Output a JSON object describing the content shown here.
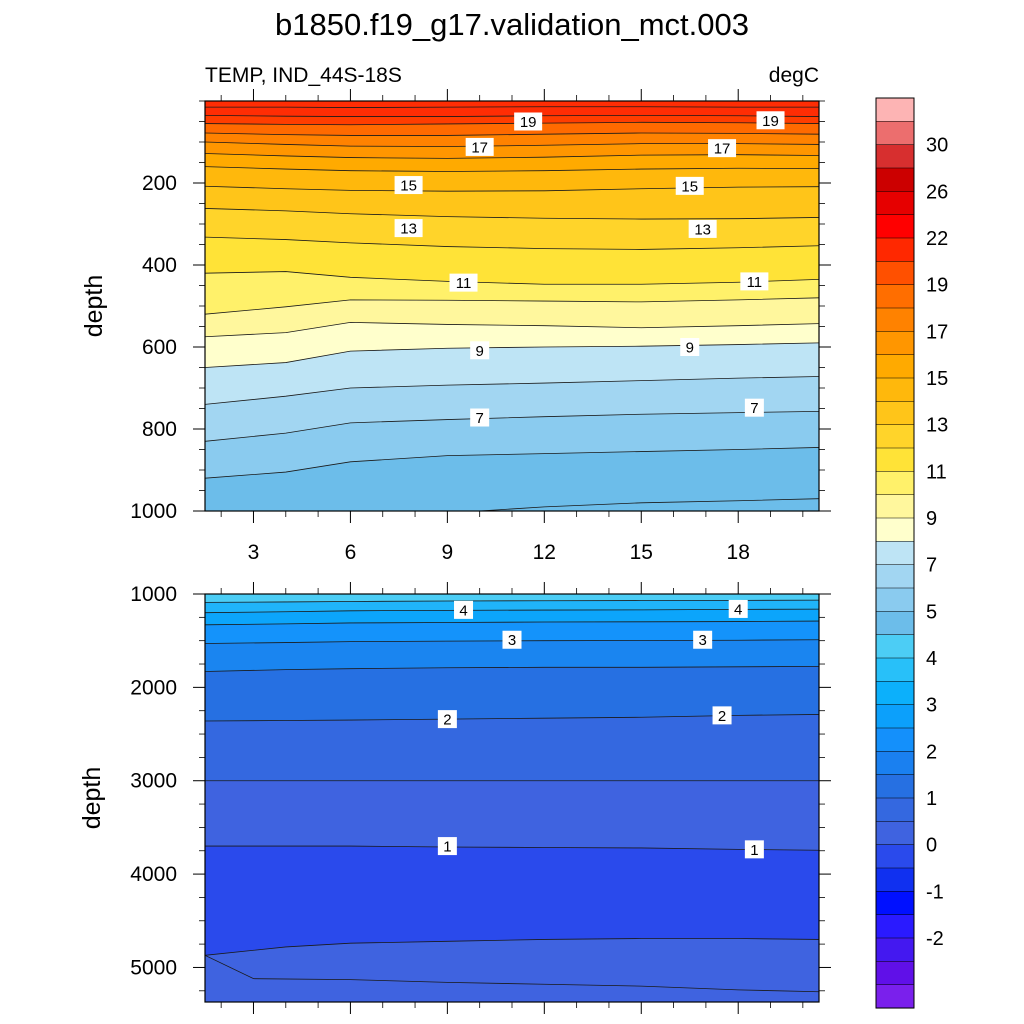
{
  "title": "b1850.f19_g17.validation_mct.003",
  "colors": {
    "frame": "#000000",
    "contour_line": "#1a1a1a",
    "label_bg": "#ffffff"
  },
  "chart_data": [
    {
      "type": "contour",
      "subtitle_left": "TEMP, IND_44S-18S",
      "subtitle_right": "degC",
      "ylabel": "depth",
      "xlabel": "",
      "xlim": [
        1.5,
        20.5
      ],
      "ylim": [
        0,
        1000
      ],
      "y_reversed": true,
      "xticks": [
        3,
        6,
        9,
        12,
        15,
        18
      ],
      "yticks": [
        200,
        400,
        600,
        800,
        1000
      ],
      "contours": [
        {
          "level": 21,
          "depths": [
            15,
            15,
            16,
            15,
            14,
            14,
            15,
            15
          ],
          "fill": "#ff2d04"
        },
        {
          "level": 20,
          "depths": [
            35,
            37,
            38,
            38,
            36,
            35,
            36,
            38
          ],
          "fill": "#ff2d04"
        },
        {
          "level": 19,
          "depths": [
            55,
            57,
            58,
            56,
            54,
            52,
            53,
            55
          ],
          "fill": "#ff3d00"
        },
        {
          "level": 18,
          "depths": [
            78,
            82,
            84,
            84,
            81,
            78,
            79,
            81
          ],
          "fill": "#ff6a00"
        },
        {
          "level": 17,
          "depths": [
            100,
            106,
            110,
            111,
            108,
            104,
            104,
            106
          ],
          "fill": "#ff8200"
        },
        {
          "level": 16,
          "depths": [
            128,
            134,
            138,
            140,
            137,
            132,
            131,
            133
          ],
          "fill": "#ff9600"
        },
        {
          "level": 15,
          "depths": [
            160,
            166,
            170,
            172,
            170,
            166,
            164,
            165
          ],
          "fill": "#ffaa00"
        },
        {
          "level": 14,
          "depths": [
            208,
            214,
            218,
            220,
            219,
            214,
            210,
            209
          ],
          "fill": "#ffb80c"
        },
        {
          "level": 13,
          "depths": [
            262,
            268,
            275,
            282,
            286,
            288,
            287,
            284
          ],
          "fill": "#ffc519"
        },
        {
          "level": 12,
          "depths": [
            332,
            338,
            346,
            355,
            360,
            362,
            358,
            353
          ],
          "fill": "#ffd42a"
        },
        {
          "level": 11,
          "depths": [
            420,
            416,
            430,
            440,
            447,
            447,
            442,
            435
          ],
          "fill": "#ffe337"
        },
        {
          "level": 10,
          "depths": [
            520,
            502,
            485,
            486,
            488,
            490,
            485,
            480
          ],
          "fill": "#fff16a"
        },
        {
          "level": 9,
          "depths": [
            575,
            565,
            540,
            545,
            548,
            553,
            548,
            543
          ],
          "fill": "#fff79d"
        },
        {
          "level": 8,
          "depths": [
            650,
            638,
            610,
            603,
            600,
            598,
            594,
            590
          ],
          "fill": "#ffffcc"
        },
        {
          "level": 7,
          "depths": [
            740,
            720,
            700,
            693,
            688,
            682,
            676,
            672
          ],
          "fill": "#bee4f5"
        },
        {
          "level": 6,
          "depths": [
            830,
            810,
            785,
            777,
            770,
            764,
            760,
            757
          ],
          "fill": "#a2d6f2"
        },
        {
          "level": 5,
          "depths": [
            920,
            905,
            880,
            865,
            860,
            855,
            850,
            845
          ],
          "fill": "#8acbef"
        },
        {
          "level": 4.5,
          "depths": [
            1010,
            1010,
            1010,
            1005,
            990,
            980,
            975,
            970
          ],
          "fill": "#6cbdea"
        }
      ],
      "contour_x": [
        1.5,
        4,
        6,
        9,
        12,
        15,
        18,
        20.5
      ],
      "bottom_fill": "#6cbdea",
      "top_fill": "#ff2d04",
      "labels": [
        {
          "text": "19",
          "x": 11.5,
          "y": 50
        },
        {
          "text": "19",
          "x": 19.0,
          "y": 47
        },
        {
          "text": "17",
          "x": 10.0,
          "y": 112
        },
        {
          "text": "17",
          "x": 17.5,
          "y": 115
        },
        {
          "text": "15",
          "x": 7.8,
          "y": 205
        },
        {
          "text": "15",
          "x": 16.5,
          "y": 207
        },
        {
          "text": "13",
          "x": 7.8,
          "y": 310
        },
        {
          "text": "13",
          "x": 16.9,
          "y": 312
        },
        {
          "text": "11",
          "x": 9.5,
          "y": 443
        },
        {
          "text": "11",
          "x": 18.5,
          "y": 440
        },
        {
          "text": "9",
          "x": 10.0,
          "y": 608
        },
        {
          "text": "9",
          "x": 16.5,
          "y": 600
        },
        {
          "text": "7",
          "x": 10.0,
          "y": 772
        },
        {
          "text": "7",
          "x": 18.5,
          "y": 748
        }
      ]
    },
    {
      "type": "contour",
      "ylabel": "depth",
      "xlabel": "",
      "xlim": [
        1.5,
        20.5
      ],
      "ylim": [
        1000,
        5370
      ],
      "y_reversed": true,
      "xticks": [
        3,
        6,
        9,
        12,
        15,
        18
      ],
      "yticks": [
        1000,
        2000,
        3000,
        4000,
        5000
      ],
      "contour_x": [
        1.5,
        4,
        6,
        9,
        12,
        15,
        18,
        20.5
      ],
      "contours": [
        {
          "level": 4.5,
          "depths": [
            1090,
            1085,
            1080,
            1075,
            1072,
            1070,
            1068,
            1066
          ],
          "fill": "#36c0f5"
        },
        {
          "level": 4,
          "depths": [
            1200,
            1190,
            1180,
            1175,
            1172,
            1170,
            1165,
            1162
          ],
          "fill": "#20b4fa"
        },
        {
          "level": 3.5,
          "depths": [
            1330,
            1320,
            1310,
            1305,
            1300,
            1298,
            1295,
            1290
          ],
          "fill": "#0ca5fb"
        },
        {
          "level": 3,
          "depths": [
            1530,
            1520,
            1510,
            1505,
            1500,
            1498,
            1495,
            1490
          ],
          "fill": "#1493fb"
        },
        {
          "level": 2.5,
          "depths": [
            1830,
            1810,
            1800,
            1790,
            1785,
            1785,
            1780,
            1775
          ],
          "fill": "#1a85f0"
        },
        {
          "level": 2,
          "depths": [
            2360,
            2355,
            2350,
            2340,
            2330,
            2320,
            2300,
            2290
          ],
          "fill": "#2670e2"
        },
        {
          "level": 1.5,
          "depths": [
            3000,
            3000,
            3000,
            3000,
            3000,
            3000,
            3000,
            3000
          ],
          "fill": "#3468e0"
        },
        {
          "level": 1,
          "depths": [
            3700,
            3700,
            3700,
            3710,
            3715,
            3720,
            3735,
            3745
          ],
          "fill": "#3f63e0"
        },
        {
          "level": 0.8,
          "depths": [
            4870,
            4780,
            4740,
            4720,
            4700,
            4690,
            4690,
            4700
          ],
          "fill": "#2a4aec"
        }
      ],
      "secondary_boundary": {
        "x": [
          1.5,
          3,
          6,
          9,
          12,
          15,
          18,
          20.5
        ],
        "depths": [
          4870,
          5120,
          5130,
          5160,
          5180,
          5200,
          5240,
          5260
        ]
      },
      "top_fill": "#4ccdf5",
      "bottom_fill": "#3f63e0",
      "labels": [
        {
          "text": "4",
          "x": 9.5,
          "y": 1170
        },
        {
          "text": "4",
          "x": 18.0,
          "y": 1160
        },
        {
          "text": "3",
          "x": 11.0,
          "y": 1490
        },
        {
          "text": "3",
          "x": 16.9,
          "y": 1490
        },
        {
          "text": "2",
          "x": 9.0,
          "y": 2340
        },
        {
          "text": "2",
          "x": 17.5,
          "y": 2300
        },
        {
          "text": "1",
          "x": 9.0,
          "y": 3700
        },
        {
          "text": "1",
          "x": 18.5,
          "y": 3735
        }
      ]
    },
    {
      "type": "colorbar",
      "levels": [
        "30",
        "26",
        "22",
        "19",
        "17",
        "15",
        "13",
        "11",
        "9",
        "7",
        "5",
        "4",
        "3",
        "2",
        "1",
        "0",
        "-1",
        "-2"
      ],
      "colors": [
        "#fdb4b4",
        "#ec6e6e",
        "#d72f2f",
        "#cc0000",
        "#e60000",
        "#ff0000",
        "#ff2800",
        "#ff5000",
        "#ff6e00",
        "#ff8200",
        "#ff9600",
        "#ffaa00",
        "#ffb80c",
        "#ffc519",
        "#ffd42a",
        "#ffe337",
        "#fff16a",
        "#fff79d",
        "#ffffcc",
        "#bee4f5",
        "#a2d6f2",
        "#8acbef",
        "#6cbdea",
        "#4ccdf5",
        "#28c0f9",
        "#0cb0fb",
        "#0ca0fb",
        "#1490fb",
        "#1a80f0",
        "#2670e2",
        "#3468e0",
        "#3f63e0",
        "#2a4aec",
        "#1030f0",
        "#0010ff",
        "#2a1aff",
        "#4418f0",
        "#6010e8",
        "#7a20ec"
      ]
    }
  ]
}
